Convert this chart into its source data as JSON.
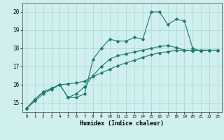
{
  "title": "",
  "xlabel": "Humidex (Indice chaleur)",
  "bg_color": "#d0efef",
  "grid_color": "#aed4d4",
  "line_color": "#1a7a6e",
  "xlim": [
    -0.5,
    23.5
  ],
  "ylim": [
    14.5,
    20.5
  ],
  "xticks": [
    0,
    1,
    2,
    3,
    4,
    5,
    6,
    7,
    8,
    9,
    10,
    11,
    12,
    13,
    14,
    15,
    16,
    17,
    18,
    19,
    20,
    21,
    22,
    23
  ],
  "yticks": [
    15,
    16,
    17,
    18,
    19,
    20
  ],
  "series1_x": [
    0,
    1,
    2,
    3,
    4,
    5,
    6,
    7,
    8,
    9,
    10,
    11,
    12,
    13,
    14,
    15,
    16,
    17,
    18,
    19,
    20,
    21,
    22,
    23
  ],
  "series1_y": [
    14.7,
    15.2,
    15.6,
    15.8,
    16.0,
    15.3,
    15.3,
    15.5,
    17.4,
    18.0,
    18.5,
    18.4,
    18.4,
    18.6,
    18.5,
    20.0,
    20.0,
    19.3,
    19.6,
    19.5,
    18.0,
    17.85,
    17.9,
    17.9
  ],
  "series2_x": [
    0,
    1,
    2,
    3,
    4,
    5,
    6,
    7,
    8,
    9,
    10,
    11,
    12,
    13,
    14,
    15,
    16,
    17,
    18,
    19,
    20,
    21,
    22,
    23
  ],
  "series2_y": [
    14.7,
    15.2,
    15.6,
    15.8,
    16.0,
    15.3,
    15.5,
    15.9,
    16.5,
    17.0,
    17.4,
    17.6,
    17.7,
    17.8,
    17.9,
    18.0,
    18.1,
    18.15,
    18.05,
    17.9,
    17.85,
    17.9,
    17.9,
    17.9
  ],
  "series3_x": [
    0,
    1,
    2,
    3,
    4,
    5,
    6,
    7,
    8,
    9,
    10,
    11,
    12,
    13,
    14,
    15,
    16,
    17,
    18,
    19,
    20,
    21,
    22,
    23
  ],
  "series3_y": [
    14.7,
    15.1,
    15.5,
    15.75,
    16.0,
    16.05,
    16.1,
    16.2,
    16.45,
    16.65,
    16.85,
    17.05,
    17.2,
    17.35,
    17.5,
    17.65,
    17.75,
    17.82,
    17.88,
    17.88,
    17.88,
    17.9,
    17.9,
    17.9
  ]
}
